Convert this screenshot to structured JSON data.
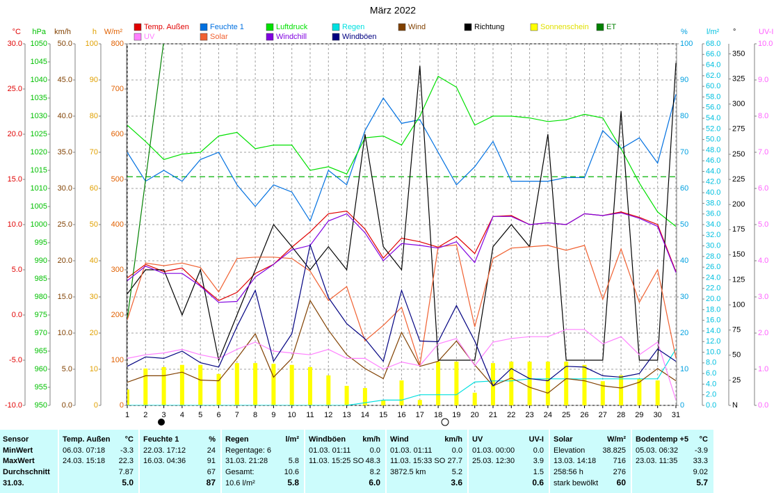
{
  "chart_data": {
    "type": "line",
    "title": "März 2022",
    "grid": true,
    "categories": [
      1,
      2,
      3,
      4,
      5,
      6,
      7,
      8,
      9,
      10,
      11,
      12,
      13,
      14,
      15,
      16,
      17,
      18,
      19,
      20,
      21,
      22,
      23,
      24,
      25,
      26,
      27,
      28,
      29,
      30,
      31
    ],
    "axes": [
      {
        "label": "°C",
        "color": "#e00000",
        "lim": [
          -10,
          30
        ],
        "ticks": [
          {
            "value": -10,
            "label": "-10.0"
          },
          {
            "value": -5,
            "label": "-5.0"
          },
          {
            "value": 0,
            "label": "0.0"
          },
          {
            "value": 5,
            "label": "5.0"
          },
          {
            "value": 10,
            "label": "10.0"
          },
          {
            "value": 15,
            "label": "15.0"
          },
          {
            "value": 20,
            "label": "20.0"
          },
          {
            "value": 25,
            "label": "25.0"
          },
          {
            "value": 30,
            "label": "30.0"
          }
        ]
      },
      {
        "label": "hPa",
        "color": "#00c000",
        "lim": [
          950,
          1050
        ],
        "ticks": [
          950,
          955,
          960,
          965,
          970,
          975,
          980,
          985,
          990,
          995,
          1000,
          1005,
          1010,
          1015,
          1020,
          1025,
          1030,
          1035,
          1040,
          1045,
          1050
        ]
      },
      {
        "label": "km/h",
        "color": "#804000",
        "lim": [
          0,
          50
        ],
        "ticks": [
          {
            "value": 0,
            "label": "0.0"
          },
          {
            "value": 5,
            "label": "5.0"
          },
          {
            "value": 10,
            "label": "10.0"
          },
          {
            "value": 15,
            "label": "15.0"
          },
          {
            "value": 20,
            "label": "20.0"
          },
          {
            "value": 25,
            "label": "25.0"
          },
          {
            "value": 30,
            "label": "30.0"
          },
          {
            "value": 35,
            "label": "35.0"
          },
          {
            "value": 40,
            "label": "40.0"
          },
          {
            "value": 45,
            "label": "45.0"
          },
          {
            "value": 50,
            "label": "50.0"
          }
        ]
      },
      {
        "label": "h",
        "color": "#e0a000",
        "lim": [
          0,
          100
        ],
        "ticks": [
          0,
          10,
          20,
          30,
          40,
          50,
          60,
          70,
          80,
          90,
          100
        ]
      },
      {
        "label": "W/m²",
        "color": "#e06000",
        "lim": [
          0,
          800
        ],
        "ticks": [
          0,
          100,
          200,
          300,
          400,
          500,
          600,
          700,
          800
        ]
      },
      {
        "label": "%",
        "color": "#00a0e0",
        "lim": [
          0,
          100
        ],
        "ticks": [
          0,
          10,
          20,
          30,
          40,
          50,
          60,
          70,
          80,
          90,
          100
        ]
      },
      {
        "label": "l/m²",
        "color": "#00c0e0",
        "lim": [
          0,
          68
        ],
        "ticks": [
          {
            "value": 0,
            "label": "0.0"
          },
          {
            "value": 2,
            "label": "2.0"
          },
          {
            "value": 4,
            "label": "4.0"
          },
          {
            "value": 6,
            "label": "6.0"
          },
          {
            "value": 8,
            "label": "8.0"
          },
          {
            "value": 10,
            "label": "10.0"
          },
          {
            "value": 12,
            "label": "12.0"
          },
          {
            "value": 14,
            "label": "14.0"
          },
          {
            "value": 16,
            "label": "16.0"
          },
          {
            "value": 18,
            "label": "18.0"
          },
          {
            "value": 20,
            "label": "20.0"
          },
          {
            "value": 22,
            "label": "22.0"
          },
          {
            "value": 24,
            "label": "24.0"
          },
          {
            "value": 26,
            "label": "26.0"
          },
          {
            "value": 28,
            "label": "28.0"
          },
          {
            "value": 30,
            "label": "30.0"
          },
          {
            "value": 32,
            "label": "32.0"
          },
          {
            "value": 34,
            "label": "34.0"
          },
          {
            "value": 36,
            "label": "36.0"
          },
          {
            "value": 38,
            "label": "38.0"
          },
          {
            "value": 40,
            "label": "40.0"
          },
          {
            "value": 42,
            "label": "42.0"
          },
          {
            "value": 44,
            "label": "44.0"
          },
          {
            "value": 46,
            "label": "46.0"
          },
          {
            "value": 48,
            "label": "48.0"
          },
          {
            "value": 50,
            "label": "50.0"
          },
          {
            "value": 52,
            "label": "52.0"
          },
          {
            "value": 54,
            "label": "54.0"
          },
          {
            "value": 56,
            "label": "56.0"
          },
          {
            "value": 58,
            "label": "58.0"
          },
          {
            "value": 60,
            "label": "60.0"
          },
          {
            "value": 62,
            "label": "62.0"
          },
          {
            "value": 64,
            "label": "64.0"
          },
          {
            "value": 66,
            "label": "66.0"
          },
          {
            "value": 68,
            "label": "68.0"
          }
        ]
      },
      {
        "label": "°",
        "color": "#000000",
        "lim": [
          0,
          360
        ],
        "ticks": [
          {
            "value": 0,
            "label": "N"
          },
          25,
          50,
          75,
          100,
          125,
          150,
          175,
          200,
          225,
          250,
          275,
          300,
          325,
          350
        ]
      },
      {
        "label": "UV-I",
        "color": "#ff60ff",
        "lim": [
          0,
          10
        ],
        "ticks": [
          {
            "value": 0,
            "label": "0.0"
          },
          {
            "value": 1,
            "label": "1.0"
          },
          {
            "value": 2,
            "label": "2.0"
          },
          {
            "value": 3,
            "label": "3.0"
          },
          {
            "value": 4,
            "label": "4.0"
          },
          {
            "value": 5,
            "label": "5.0"
          },
          {
            "value": 6,
            "label": "6.0"
          },
          {
            "value": 7,
            "label": "7.0"
          },
          {
            "value": 8,
            "label": "8.0"
          },
          {
            "value": 9,
            "label": "9.0"
          },
          {
            "value": 10,
            "label": "10.0"
          }
        ]
      }
    ],
    "reference_lines": [
      {
        "axis": "hPa",
        "value": 1013.25,
        "color": "#00b000"
      }
    ],
    "series": [
      {
        "name": "Temp. Außen",
        "color": "#e00000",
        "axis": "°C",
        "values": [
          4.1,
          5.6,
          4.8,
          5.2,
          3.3,
          1.6,
          2.5,
          4.6,
          5.6,
          7.5,
          9.2,
          11.2,
          11.5,
          9.5,
          6.3,
          8.5,
          8.1,
          7.5,
          8.7,
          6.8,
          10.9,
          11.0,
          10.0,
          10.2,
          10.0,
          11.2,
          11.0,
          11.4,
          10.8,
          10.0,
          4.8
        ]
      },
      {
        "name": "Feuchte 1",
        "color": "#0070e0",
        "axis": "%",
        "values": [
          70,
          62,
          65,
          62,
          68,
          70,
          61,
          55,
          61,
          59,
          51,
          65,
          61,
          76,
          85,
          78,
          79,
          70,
          61,
          66,
          73,
          62,
          62,
          62,
          63,
          63,
          76,
          71,
          74,
          67,
          86
        ]
      },
      {
        "name": "Luftdruck",
        "color": "#00e000",
        "axis": "hPa",
        "values": [
          1027.5,
          1023,
          1018,
          1019.5,
          1020,
          1024.5,
          1025.5,
          1021,
          1022,
          1022,
          1015,
          1016,
          1014,
          1024,
          1024.5,
          1022,
          1030,
          1041,
          1038,
          1027.5,
          1030,
          1030,
          1029.5,
          1028.5,
          1029,
          1030.5,
          1029.5,
          1021,
          1011.5,
          1003.5,
          999.5
        ]
      },
      {
        "name": "Regen",
        "color": "#00e0e0",
        "axis": "l/m²",
        "values": [
          0,
          0,
          0,
          0,
          0,
          0,
          0,
          0,
          0,
          0,
          0,
          0,
          0,
          0.5,
          1.0,
          1.0,
          2.0,
          2.0,
          2.0,
          4.4,
          4.6,
          4.6,
          5.0,
          5.0,
          5.0,
          5.0,
          5.0,
          5.0,
          5.0,
          5.0,
          10.6
        ]
      },
      {
        "name": "Wind",
        "color": "#804000",
        "axis": "km/h",
        "values": [
          3.2,
          4.1,
          4.1,
          4.6,
          3.5,
          3.4,
          6.5,
          9.9,
          3.9,
          6.5,
          14.5,
          10.4,
          7.0,
          5.1,
          3.7,
          10.1,
          5.4,
          6.1,
          8.9,
          5.6,
          2.7,
          3.8,
          2.5,
          1.7,
          3.7,
          3.4,
          2.7,
          2.4,
          3.2,
          5.1,
          3.4
        ]
      },
      {
        "name": "Richtung",
        "color": "#000000",
        "axis": "°",
        "values": [
          111,
          135,
          135,
          90,
          135,
          45,
          90,
          135,
          180,
          158,
          135,
          158,
          135,
          270,
          158,
          135,
          338,
          45,
          45,
          45,
          158,
          180,
          158,
          270,
          45,
          45,
          45,
          293,
          45,
          45,
          341
        ]
      },
      {
        "name": "Sonnenschein",
        "color": "#ffff00",
        "axis": "h",
        "type": "bar",
        "values": [
          4.4,
          10.2,
          10.6,
          11.2,
          11.2,
          8.7,
          11.7,
          11.7,
          11.5,
          11.2,
          10.6,
          8.3,
          5.4,
          4.8,
          1.5,
          6.9,
          1.5,
          12.1,
          12.1,
          3.5,
          11.7,
          12.1,
          12.1,
          12.1,
          12.1,
          11.2,
          6.7,
          8.3,
          7.3,
          6.9,
          null
        ]
      },
      {
        "name": "ET",
        "color": "#008000",
        "axis": "l/m²",
        "values": [
          16.2,
          42.4,
          68.6,
          null,
          null,
          null,
          null,
          null,
          null,
          null,
          null,
          null,
          null,
          null,
          null,
          null,
          null,
          null,
          null,
          null,
          null,
          null,
          null,
          null,
          null,
          null,
          null,
          null,
          null,
          null,
          null
        ]
      },
      {
        "name": "UV",
        "color": "#ff80ff",
        "axis": "UV-I",
        "values": [
          1.3,
          1.4,
          1.45,
          1.55,
          1.4,
          1.3,
          1.55,
          1.75,
          1.5,
          1.45,
          1.4,
          1.55,
          1.3,
          1.3,
          1.0,
          1.2,
          1.1,
          1.7,
          1.85,
          1.1,
          1.75,
          1.85,
          1.9,
          1.9,
          2.1,
          2.1,
          1.7,
          1.9,
          1.4,
          1.75,
          0.15
        ]
      },
      {
        "name": "Solar",
        "color": "#f06030",
        "axis": "W/m²",
        "values": [
          189,
          315,
          309,
          315,
          305,
          251,
          325,
          328,
          328,
          325,
          297,
          232,
          263,
          143,
          177,
          217,
          89,
          351,
          355,
          174,
          325,
          348,
          351,
          354,
          343,
          354,
          235,
          346,
          228,
          300,
          105
        ]
      },
      {
        "name": "Windchill",
        "color": "#8000e0",
        "axis": "°C",
        "values": [
          3.8,
          5.4,
          4.6,
          4.6,
          3.2,
          1.4,
          1.5,
          4.2,
          5.6,
          7.2,
          7.7,
          10.4,
          11.2,
          9.1,
          6.0,
          7.9,
          7.7,
          7.4,
          8.1,
          5.8,
          10.9,
          10.9,
          10.0,
          10.2,
          10.0,
          11.2,
          11.0,
          11.3,
          10.7,
          9.8,
          4.7
        ]
      },
      {
        "name": "Windböen",
        "color": "#000080",
        "axis": "km/h",
        "values": [
          5.4,
          6.7,
          6.5,
          7.5,
          5.9,
          5.3,
          10.9,
          15.9,
          6.1,
          9.9,
          22.2,
          14.9,
          11.3,
          9.2,
          6.1,
          15.9,
          8.9,
          8.8,
          13.8,
          8.9,
          2.7,
          5.1,
          3.7,
          3.4,
          5.4,
          5.3,
          4.1,
          3.9,
          4.4,
          7.8,
          6.1
        ]
      }
    ]
  },
  "table": {
    "sensor_header": "Sensor",
    "row_labels": [
      "MinWert",
      "MaxWert",
      "Durchschnitt",
      "31.03."
    ],
    "panels": [
      {
        "title": "Temp. Außen",
        "unit": "°C",
        "rows": [
          [
            "06.03. 07:18",
            "-3.3"
          ],
          [
            "24.03. 15:18",
            "22.3"
          ],
          [
            null,
            "7.87"
          ],
          [
            null,
            "5.0"
          ]
        ]
      },
      {
        "title": "Feuchte 1",
        "unit": "%",
        "rows": [
          [
            "22.03. 17:12",
            "24"
          ],
          [
            "16.03. 04:36",
            "91"
          ],
          [
            null,
            "67"
          ],
          [
            null,
            "87"
          ]
        ]
      },
      {
        "title": "Regen",
        "unit": "l/m²",
        "rows": [
          [
            "Regentage: 6",
            null
          ],
          [
            "31.03. 21:28",
            "5.8"
          ],
          [
            "Gesamt:",
            "10.6"
          ],
          [
            "10.6 l/m²",
            "5.8"
          ]
        ]
      },
      {
        "title": "Windböen",
        "unit": "km/h",
        "rows": [
          [
            "01.03. 01:11",
            "0.0"
          ],
          [
            "11.03. 15:25 SO",
            "48.3"
          ],
          [
            null,
            "8.2"
          ],
          [
            null,
            "6.0"
          ]
        ]
      },
      {
        "title": "Wind",
        "unit": "km/h",
        "rows": [
          [
            "01.03. 01:11",
            "0.0"
          ],
          [
            "11.03. 15:33 SO",
            "27.7"
          ],
          [
            "3872.5 km",
            "5.2"
          ],
          [
            null,
            "3.6"
          ]
        ]
      },
      {
        "title": "UV",
        "unit": "UV-I",
        "rows": [
          [
            "01.03. 00:00",
            "0.0"
          ],
          [
            "25.03. 12:30",
            "3.9"
          ],
          [
            null,
            "1.5"
          ],
          [
            null,
            "0.6"
          ]
        ]
      },
      {
        "title": "Solar",
        "unit": "W/m²",
        "rows": [
          [
            "Elevation",
            "38.825"
          ],
          [
            "13.03. 14:18",
            "716"
          ],
          [
            "258:56 h",
            "276"
          ],
          [
            "stark bewölkt",
            "60"
          ]
        ]
      },
      {
        "title": "Bodentemp +5",
        "unit": "°C",
        "rows": [
          [
            "05.03. 06:32",
            "-3.9"
          ],
          [
            "23.03. 11:35",
            "33.3"
          ],
          [
            null,
            "9.02"
          ],
          [
            null,
            "5.7"
          ]
        ]
      }
    ]
  }
}
